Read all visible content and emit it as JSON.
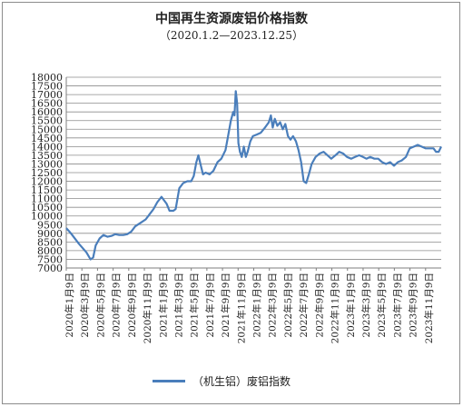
{
  "chart_data": {
    "type": "line",
    "title": "中国再生资源废铝价格指数",
    "subtitle": "（2020.1.2—2023.12.25）",
    "ylim": [
      7000,
      18000
    ],
    "ytick_step": 500,
    "x_tick_labels": [
      "2020年1月9日",
      "2020年3月9日",
      "2020年5月9日",
      "2020年7月9日",
      "2020年9月9日",
      "2020年11月9日",
      "2021年1月9日",
      "2021年3月9日",
      "2021年5月9日",
      "2021年7月9日",
      "2021年9月9日",
      "2021年11月9日",
      "2022年1月9日",
      "2022年3月9日",
      "2022年5月9日",
      "2022年7月9日",
      "2022年9月9日",
      "2022年11月9日",
      "2023年1月9日",
      "2023年3月9日",
      "2023年5月9日",
      "2023年7月9日",
      "2023年9月9日",
      "2023年11月9日"
    ],
    "grid": "horizontal",
    "legend_position": "bottom",
    "line_color": "#4a7ebb",
    "series": [
      {
        "name": "（机生铝）废铝指数",
        "points": [
          {
            "x": "2020-01-02",
            "y": 9300
          },
          {
            "x": "2020-01-20",
            "y": 9000
          },
          {
            "x": "2020-02-20",
            "y": 8400
          },
          {
            "x": "2020-03-20",
            "y": 7900
          },
          {
            "x": "2020-04-05",
            "y": 7500
          },
          {
            "x": "2020-04-15",
            "y": 7600
          },
          {
            "x": "2020-04-25",
            "y": 8300
          },
          {
            "x": "2020-05-10",
            "y": 8700
          },
          {
            "x": "2020-05-25",
            "y": 8900
          },
          {
            "x": "2020-06-10",
            "y": 8800
          },
          {
            "x": "2020-06-25",
            "y": 8850
          },
          {
            "x": "2020-07-10",
            "y": 8950
          },
          {
            "x": "2020-07-25",
            "y": 8900
          },
          {
            "x": "2020-08-10",
            "y": 8900
          },
          {
            "x": "2020-08-25",
            "y": 8950
          },
          {
            "x": "2020-09-10",
            "y": 9100
          },
          {
            "x": "2020-09-25",
            "y": 9400
          },
          {
            "x": "2020-10-15",
            "y": 9600
          },
          {
            "x": "2020-11-05",
            "y": 9800
          },
          {
            "x": "2020-11-20",
            "y": 10100
          },
          {
            "x": "2020-12-05",
            "y": 10400
          },
          {
            "x": "2020-12-20",
            "y": 10800
          },
          {
            "x": "2021-01-05",
            "y": 11100
          },
          {
            "x": "2021-01-15",
            "y": 10900
          },
          {
            "x": "2021-01-25",
            "y": 10700
          },
          {
            "x": "2021-02-05",
            "y": 10300
          },
          {
            "x": "2021-02-20",
            "y": 10300
          },
          {
            "x": "2021-03-01",
            "y": 10400
          },
          {
            "x": "2021-03-15",
            "y": 11600
          },
          {
            "x": "2021-03-30",
            "y": 11900
          },
          {
            "x": "2021-04-15",
            "y": 12000
          },
          {
            "x": "2021-04-30",
            "y": 12000
          },
          {
            "x": "2021-05-10",
            "y": 12300
          },
          {
            "x": "2021-05-20",
            "y": 13100
          },
          {
            "x": "2021-05-28",
            "y": 13500
          },
          {
            "x": "2021-06-05",
            "y": 13000
          },
          {
            "x": "2021-06-15",
            "y": 12400
          },
          {
            "x": "2021-06-25",
            "y": 12500
          },
          {
            "x": "2021-07-10",
            "y": 12400
          },
          {
            "x": "2021-07-25",
            "y": 12600
          },
          {
            "x": "2021-08-10",
            "y": 13100
          },
          {
            "x": "2021-08-25",
            "y": 13300
          },
          {
            "x": "2021-09-10",
            "y": 13800
          },
          {
            "x": "2021-09-20",
            "y": 14600
          },
          {
            "x": "2021-10-01",
            "y": 15500
          },
          {
            "x": "2021-10-10",
            "y": 16000
          },
          {
            "x": "2021-10-15",
            "y": 15800
          },
          {
            "x": "2021-10-20",
            "y": 17200
          },
          {
            "x": "2021-10-25",
            "y": 16500
          },
          {
            "x": "2021-10-30",
            "y": 14200
          },
          {
            "x": "2021-11-05",
            "y": 13700
          },
          {
            "x": "2021-11-12",
            "y": 13400
          },
          {
            "x": "2021-11-20",
            "y": 14000
          },
          {
            "x": "2021-11-28",
            "y": 13400
          },
          {
            "x": "2021-12-05",
            "y": 13700
          },
          {
            "x": "2021-12-15",
            "y": 14300
          },
          {
            "x": "2021-12-25",
            "y": 14600
          },
          {
            "x": "2022-01-10",
            "y": 14700
          },
          {
            "x": "2022-01-25",
            "y": 14800
          },
          {
            "x": "2022-02-10",
            "y": 15100
          },
          {
            "x": "2022-02-25",
            "y": 15400
          },
          {
            "x": "2022-03-05",
            "y": 15800
          },
          {
            "x": "2022-03-12",
            "y": 15100
          },
          {
            "x": "2022-03-20",
            "y": 15600
          },
          {
            "x": "2022-03-30",
            "y": 15200
          },
          {
            "x": "2022-04-10",
            "y": 15400
          },
          {
            "x": "2022-04-20",
            "y": 15000
          },
          {
            "x": "2022-04-30",
            "y": 15300
          },
          {
            "x": "2022-05-10",
            "y": 14600
          },
          {
            "x": "2022-05-20",
            "y": 14400
          },
          {
            "x": "2022-05-30",
            "y": 14600
          },
          {
            "x": "2022-06-10",
            "y": 14300
          },
          {
            "x": "2022-06-20",
            "y": 13800
          },
          {
            "x": "2022-06-30",
            "y": 13100
          },
          {
            "x": "2022-07-10",
            "y": 12000
          },
          {
            "x": "2022-07-20",
            "y": 11900
          },
          {
            "x": "2022-07-30",
            "y": 12400
          },
          {
            "x": "2022-08-10",
            "y": 13000
          },
          {
            "x": "2022-08-25",
            "y": 13400
          },
          {
            "x": "2022-09-10",
            "y": 13600
          },
          {
            "x": "2022-09-25",
            "y": 13700
          },
          {
            "x": "2022-10-10",
            "y": 13500
          },
          {
            "x": "2022-10-25",
            "y": 13300
          },
          {
            "x": "2022-11-10",
            "y": 13500
          },
          {
            "x": "2022-11-25",
            "y": 13700
          },
          {
            "x": "2022-12-10",
            "y": 13600
          },
          {
            "x": "2022-12-25",
            "y": 13400
          },
          {
            "x": "2023-01-10",
            "y": 13300
          },
          {
            "x": "2023-01-25",
            "y": 13400
          },
          {
            "x": "2023-02-10",
            "y": 13500
          },
          {
            "x": "2023-02-25",
            "y": 13400
          },
          {
            "x": "2023-03-10",
            "y": 13300
          },
          {
            "x": "2023-03-25",
            "y": 13400
          },
          {
            "x": "2023-04-10",
            "y": 13300
          },
          {
            "x": "2023-04-25",
            "y": 13300
          },
          {
            "x": "2023-05-10",
            "y": 13100
          },
          {
            "x": "2023-05-25",
            "y": 13000
          },
          {
            "x": "2023-06-10",
            "y": 13100
          },
          {
            "x": "2023-06-25",
            "y": 12900
          },
          {
            "x": "2023-07-10",
            "y": 13100
          },
          {
            "x": "2023-07-25",
            "y": 13200
          },
          {
            "x": "2023-08-10",
            "y": 13400
          },
          {
            "x": "2023-08-25",
            "y": 13900
          },
          {
            "x": "2023-09-10",
            "y": 14000
          },
          {
            "x": "2023-09-25",
            "y": 14100
          },
          {
            "x": "2023-10-10",
            "y": 14000
          },
          {
            "x": "2023-10-25",
            "y": 13900
          },
          {
            "x": "2023-11-10",
            "y": 13900
          },
          {
            "x": "2023-11-25",
            "y": 13900
          },
          {
            "x": "2023-12-05",
            "y": 13700
          },
          {
            "x": "2023-12-15",
            "y": 13700
          },
          {
            "x": "2023-12-25",
            "y": 14000
          }
        ]
      }
    ]
  }
}
